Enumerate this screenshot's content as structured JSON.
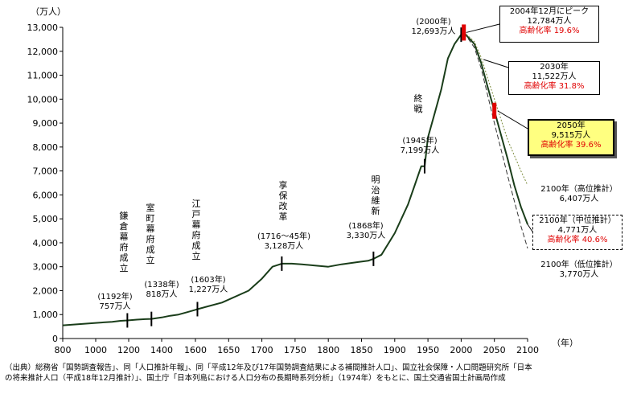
{
  "chart_data": {
    "type": "line",
    "y_unit_label": "（万人）",
    "x_unit_label": "（年）",
    "xlim": [
      800,
      2100
    ],
    "ylim": [
      0,
      13000
    ],
    "x_ticks": [
      800,
      1000,
      1200,
      1400,
      1600,
      1650,
      1700,
      1750,
      1800,
      1850,
      1900,
      1950,
      2000,
      2050,
      2100
    ],
    "y_ticks": [
      "0",
      "1,000",
      "2,000",
      "3,000",
      "4,000",
      "5,000",
      "6,000",
      "7,000",
      "8,000",
      "9,000",
      "10,000",
      "11,000",
      "12,000",
      "13,000"
    ],
    "grid": false,
    "series": [
      {
        "x": [
          800,
          900,
          1000,
          1100,
          1150,
          1192,
          1250,
          1300,
          1338,
          1400,
          1450,
          1500,
          1550,
          1600,
          1603,
          1640,
          1680,
          1700,
          1716,
          1730,
          1745,
          1760,
          1780,
          1800,
          1820,
          1846,
          1860,
          1868,
          1880,
          1900,
          1920,
          1930,
          1940,
          1945,
          1950,
          1960,
          1970,
          1980,
          1990,
          2000,
          2004
        ],
        "y": [
          550,
          600,
          650,
          700,
          740,
          757,
          790,
          810,
          818,
          880,
          950,
          1000,
          1100,
          1200,
          1227,
          1500,
          2000,
          2500,
          3000,
          3128,
          3128,
          3100,
          3050,
          3000,
          3100,
          3200,
          3250,
          3330,
          3500,
          4400,
          5600,
          6400,
          7200,
          7199,
          8400,
          9400,
          10400,
          11700,
          12300,
          12693,
          12784
        ]
      },
      {
        "x": [
          2004,
          2010,
          2020,
          2030,
          2040,
          2050,
          2060,
          2070,
          2080,
          2090,
          2100
        ],
        "y": [
          12784,
          12600,
          12300,
          11522,
          10500,
          9515,
          8500,
          7500,
          6400,
          5500,
          4771
        ]
      },
      {
        "x": [
          2004,
          2010,
          2020,
          2030,
          2050,
          2070,
          2090,
          2100
        ],
        "y": [
          12784,
          12650,
          12400,
          11750,
          10000,
          8300,
          7000,
          6407
        ]
      },
      {
        "x": [
          2004,
          2010,
          2020,
          2030,
          2050,
          2070,
          2090,
          2100
        ],
        "y": [
          12784,
          12550,
          12150,
          11300,
          9000,
          6800,
          4700,
          3770
        ]
      }
    ],
    "vertical_labels": [
      {
        "x": 1192,
        "text": "鎌倉幕府成立"
      },
      {
        "x": 1338,
        "text": "室町幕府成立"
      },
      {
        "x": 1603,
        "text": "江戸幕府成立"
      },
      {
        "x": 1730,
        "text": "享保改革"
      },
      {
        "x": 1868,
        "text": "明治維新"
      },
      {
        "x": 1945,
        "text": "終戦"
      }
    ],
    "event_labels": {
      "kamakura": {
        "year": "(1192年)",
        "value": "757万人"
      },
      "muromachi": {
        "year": "(1338年)",
        "value": "818万人"
      },
      "edo": {
        "year": "(1603年)",
        "value": "1,227万人"
      },
      "kyoho": {
        "year": "(1716～45年)",
        "value": "3,128万人"
      },
      "meiji": {
        "year": "(1868年)",
        "value": "3,330万人"
      },
      "war": {
        "year": "(1945年)",
        "value": "7,199万人"
      },
      "y2000": {
        "year": "(2000年)",
        "value": "12,693万人"
      }
    },
    "callouts": {
      "peak": {
        "line1": "2004年12月にピーク",
        "line2": "12,784万人",
        "line3": "高齢化率 19.6%"
      },
      "y2030": {
        "line1": "2030年",
        "line2": "11,522万人",
        "line3": "高齢化率 31.8%"
      },
      "y2050": {
        "line1": "2050年",
        "line2": "9,515万人",
        "line3": "高齢化率 39.6%"
      },
      "high": {
        "line1": "2100年（高位推計）",
        "line2": "6,407万人"
      },
      "mid": {
        "line1": "2100年（中位推計）",
        "line2": "4,771万人",
        "line3": "高齢化率 40.6%"
      },
      "low": {
        "line1": "2100年（低位推計）",
        "line2": "3,770万人"
      }
    },
    "source_note": {
      "line1": "（出典）総務省「国勢調査報告」、同「人口推計年報」、同「平成12年及び17年国勢調査結果による補間推計人口」、国立社会保障・人口問題研究所「日本",
      "line2": "の将来推計人口（平成18年12月推計）」、国土庁「日本列島における人口分布の長期時系列分析」（1974年）をもとに、国土交通省国土計画局作成"
    },
    "colors": {
      "line": "#1a3d1a",
      "marker_red": "#e00000",
      "highlight": "#ffff80"
    }
  }
}
